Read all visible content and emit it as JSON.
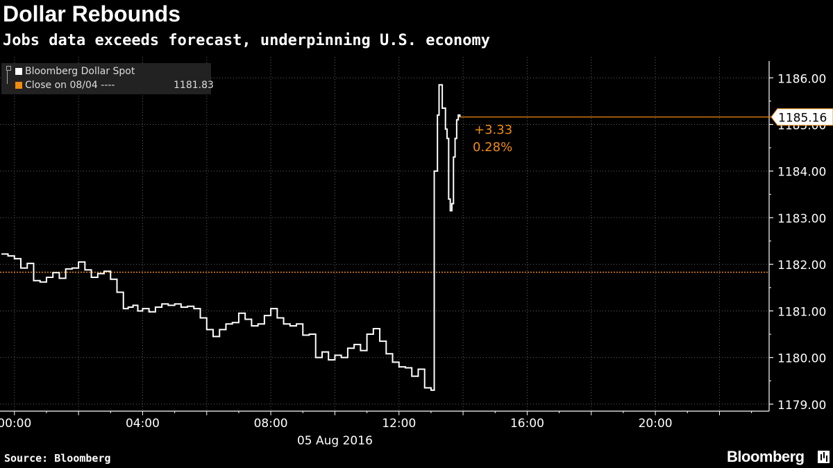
{
  "header": {
    "title": "Dollar Rebounds",
    "subtitle": "Jobs data exceeds forecast, underpinning U.S. economy"
  },
  "footer": {
    "source": "Source: Bloomberg",
    "brand": "Bloomberg"
  },
  "legend": {
    "series_label": "Bloomberg Dollar Spot",
    "close_label": "Close on 08/04 ----",
    "close_value": "1181.83"
  },
  "colors": {
    "background": "#000000",
    "series": "#ffffff",
    "reference": "#f08c10",
    "axis": "#ffffff"
  },
  "chart_data": {
    "type": "line",
    "xlabel": "05 Aug 2016",
    "ylim": [
      1178.85,
      1186.45
    ],
    "xlim": [
      -0.45,
      23.55
    ],
    "x_ticks": [
      {
        "x": 0,
        "label": "00:00"
      },
      {
        "x": 4,
        "label": "04:00"
      },
      {
        "x": 8,
        "label": "08:00"
      },
      {
        "x": 12,
        "label": "12:00"
      },
      {
        "x": 16,
        "label": "16:00"
      },
      {
        "x": 20,
        "label": "20:00"
      }
    ],
    "y_ticks": [
      {
        "y": 1179,
        "label": "1179.00"
      },
      {
        "y": 1180,
        "label": "1180.00"
      },
      {
        "y": 1181,
        "label": "1181.00"
      },
      {
        "y": 1182,
        "label": "1182.00"
      },
      {
        "y": 1183,
        "label": "1183.00"
      },
      {
        "y": 1184,
        "label": "1184.00"
      },
      {
        "y": 1185,
        "label": "1185.00"
      },
      {
        "y": 1186,
        "label": "1186.00"
      }
    ],
    "reference_line": {
      "value": 1181.83,
      "name": "Close on 08/04"
    },
    "last_value": {
      "value": 1185.16,
      "label": "1185.16"
    },
    "change": {
      "abs": "+3.33",
      "pct": "0.28%"
    },
    "series": [
      {
        "name": "Bloomberg Dollar Spot",
        "x": [
          -0.4,
          -0.2,
          0.0,
          0.2,
          0.4,
          0.6,
          0.8,
          1.0,
          1.2,
          1.4,
          1.6,
          1.8,
          2.0,
          2.2,
          2.4,
          2.6,
          2.8,
          3.0,
          3.2,
          3.4,
          3.55,
          3.7,
          3.85,
          4.0,
          4.2,
          4.4,
          4.6,
          4.8,
          5.0,
          5.2,
          5.4,
          5.6,
          5.8,
          6.0,
          6.2,
          6.4,
          6.6,
          6.8,
          7.0,
          7.2,
          7.4,
          7.6,
          7.8,
          8.0,
          8.2,
          8.4,
          8.6,
          8.8,
          9.0,
          9.2,
          9.4,
          9.6,
          9.8,
          10.0,
          10.2,
          10.4,
          10.6,
          10.8,
          11.0,
          11.2,
          11.4,
          11.6,
          11.8,
          12.0,
          12.2,
          12.4,
          12.6,
          12.8,
          13.0,
          13.1,
          13.2,
          13.25,
          13.35,
          13.45,
          13.5,
          13.55,
          13.6,
          13.65,
          13.7,
          13.75,
          13.8,
          13.85,
          13.9
        ],
        "values": [
          1182.22,
          1182.18,
          1182.12,
          1181.92,
          1182.02,
          1181.65,
          1181.62,
          1181.72,
          1181.82,
          1181.7,
          1181.9,
          1181.92,
          1182.05,
          1181.88,
          1181.72,
          1181.8,
          1181.85,
          1181.68,
          1181.4,
          1181.05,
          1181.08,
          1181.12,
          1181.0,
          1181.05,
          1180.98,
          1181.08,
          1181.15,
          1181.12,
          1181.15,
          1181.08,
          1181.1,
          1181.05,
          1180.85,
          1180.6,
          1180.45,
          1180.6,
          1180.72,
          1180.75,
          1180.95,
          1180.82,
          1180.68,
          1180.72,
          1180.9,
          1181.05,
          1180.85,
          1180.72,
          1180.68,
          1180.72,
          1180.48,
          1180.5,
          1180.0,
          1180.12,
          1179.95,
          1180.05,
          1180.0,
          1180.2,
          1180.28,
          1180.15,
          1180.5,
          1180.62,
          1180.35,
          1180.08,
          1179.9,
          1179.8,
          1179.78,
          1179.6,
          1179.75,
          1179.35,
          1179.3,
          1184.0,
          1185.2,
          1185.85,
          1185.35,
          1184.9,
          1184.7,
          1183.4,
          1183.15,
          1183.3,
          1184.3,
          1184.7,
          1185.1,
          1185.2,
          1185.16
        ]
      }
    ]
  }
}
